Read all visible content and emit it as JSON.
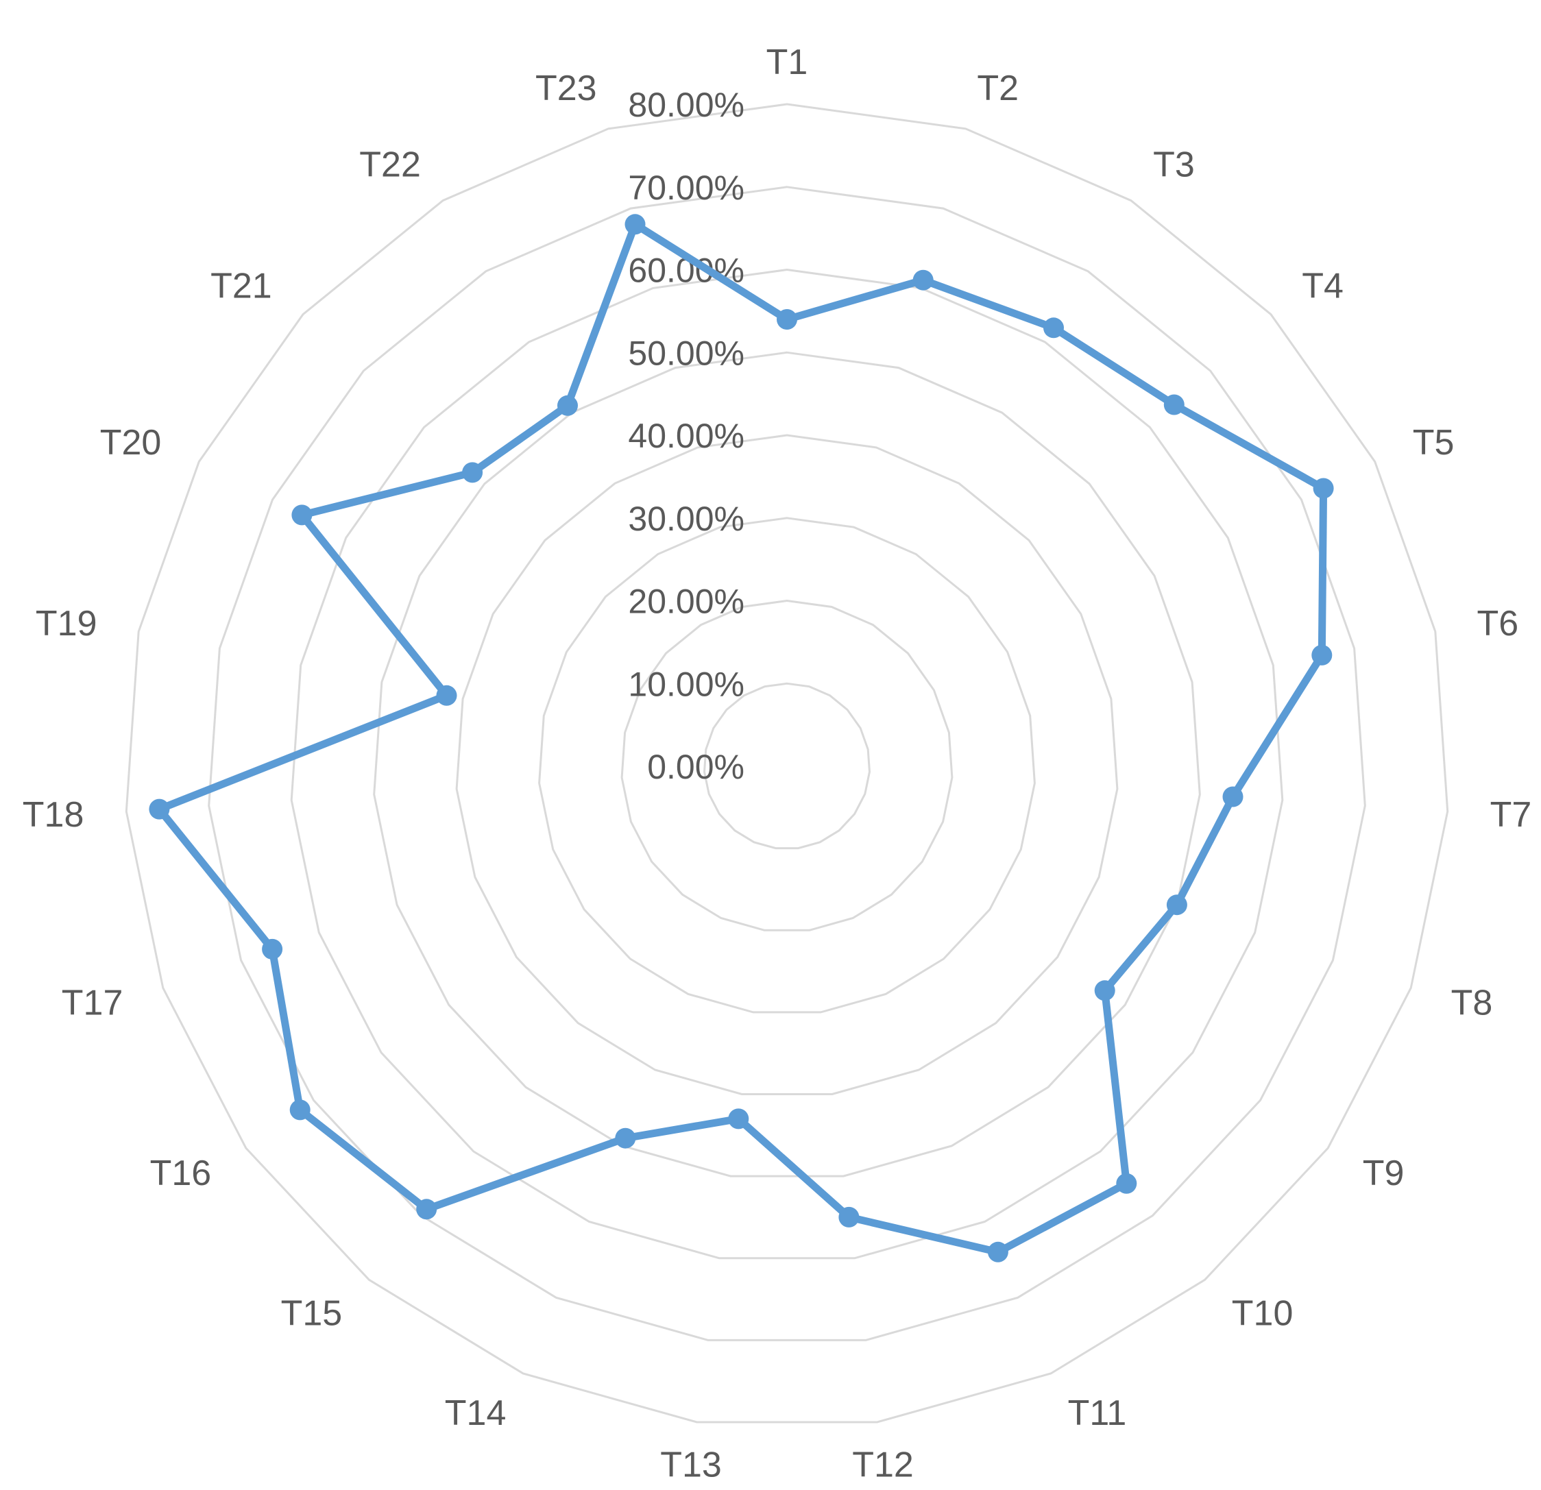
{
  "chart_data": {
    "type": "radar",
    "categories": [
      "T1",
      "T2",
      "T3",
      "T4",
      "T5",
      "T6",
      "T7",
      "T8",
      "T9",
      "T10",
      "T11",
      "T12",
      "T13",
      "T14",
      "T15",
      "T16",
      "T17",
      "T18",
      "T19",
      "T20",
      "T21",
      "T22",
      "T23"
    ],
    "series": [
      {
        "values": [
          0.54,
          0.61,
          0.62,
          0.64,
          0.73,
          0.66,
          0.54,
          0.5,
          0.47,
          0.65,
          0.64,
          0.55,
          0.43,
          0.49,
          0.69,
          0.72,
          0.66,
          0.76,
          0.42,
          0.66,
          0.52,
          0.51,
          0.68
        ],
        "color": "#5B9BD5"
      }
    ],
    "rlim": [
      0,
      0.8
    ],
    "ticks": [
      "0.00%",
      "10.00%",
      "20.00%",
      "30.00%",
      "40.00%",
      "50.00%",
      "60.00%",
      "70.00%",
      "80.00%"
    ],
    "grid": true,
    "grid_color": "#D9D9D9",
    "text_color": "#595959",
    "legend": "none"
  }
}
